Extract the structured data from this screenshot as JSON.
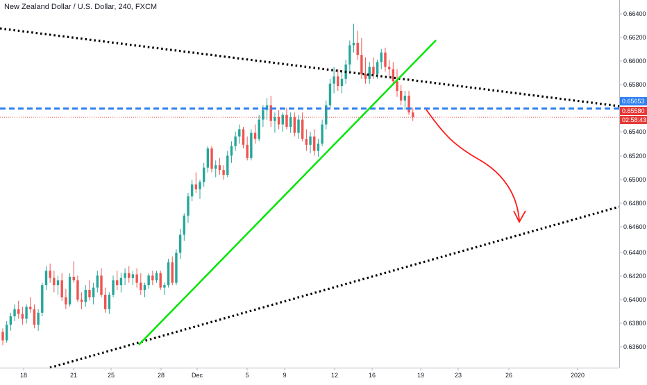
{
  "header": {
    "title": "New Zealand Dollar / U.S. Dollar, 240, FXCM"
  },
  "colors": {
    "up": "#26a69a",
    "down": "#ef5350",
    "trend_green": "#00e600",
    "dotted": "#000000",
    "level_blue": "#2f7ff1",
    "price_red": "#e53935",
    "arrow_red": "#ff1a1a"
  },
  "chart_data": {
    "type": "candlestick",
    "title": "New Zealand Dollar / U.S. Dollar, 240, FXCM",
    "ylim": [
      0.6355,
      0.665
    ],
    "y_ticks": [
      "0.66400",
      "0.66200",
      "0.66000",
      "0.65800",
      "0.65400",
      "0.65200",
      "0.65000",
      "0.64800",
      "0.64600",
      "0.64400",
      "0.64200",
      "0.64000",
      "0.63800",
      "0.63600"
    ],
    "x_ticks": [
      "18",
      "21",
      "25",
      "28",
      "Dec",
      "5",
      "9",
      "12",
      "16",
      "19",
      "23",
      "26",
      "2020"
    ],
    "price_tags": [
      {
        "label": "0.65653",
        "value": 0.65653,
        "color": "blue"
      },
      {
        "label": "0.65580",
        "value": 0.6558,
        "color": "red"
      },
      {
        "label": "02:58:43",
        "value": 0.655,
        "color": "red"
      }
    ],
    "candles": [
      [
        0.6379,
        0.6382,
        0.6368,
        0.6372
      ],
      [
        0.6372,
        0.6388,
        0.637,
        0.6385
      ],
      [
        0.6385,
        0.6395,
        0.638,
        0.6392
      ],
      [
        0.6392,
        0.6402,
        0.6388,
        0.6398
      ],
      [
        0.6398,
        0.6405,
        0.639,
        0.6394
      ],
      [
        0.6394,
        0.64,
        0.6385,
        0.639
      ],
      [
        0.639,
        0.6402,
        0.6386,
        0.64
      ],
      [
        0.64,
        0.6408,
        0.6395,
        0.6398
      ],
      [
        0.6398,
        0.6402,
        0.6382,
        0.6385
      ],
      [
        0.6385,
        0.6398,
        0.638,
        0.6395
      ],
      [
        0.6395,
        0.642,
        0.6392,
        0.6418
      ],
      [
        0.6418,
        0.6434,
        0.6414,
        0.643
      ],
      [
        0.643,
        0.6436,
        0.642,
        0.6424
      ],
      [
        0.6424,
        0.643,
        0.6412,
        0.6418
      ],
      [
        0.6418,
        0.6426,
        0.641,
        0.6422
      ],
      [
        0.6422,
        0.6428,
        0.6405,
        0.6408
      ],
      [
        0.6408,
        0.6415,
        0.6398,
        0.6402
      ],
      [
        0.6402,
        0.6428,
        0.64,
        0.6425
      ],
      [
        0.6425,
        0.6438,
        0.642,
        0.6422
      ],
      [
        0.6422,
        0.6426,
        0.6404,
        0.6406
      ],
      [
        0.6406,
        0.6412,
        0.6398,
        0.6404
      ],
      [
        0.6404,
        0.6418,
        0.64,
        0.6414
      ],
      [
        0.6414,
        0.6422,
        0.6405,
        0.6408
      ],
      [
        0.6408,
        0.642,
        0.6402,
        0.6416
      ],
      [
        0.6416,
        0.643,
        0.6412,
        0.6426
      ],
      [
        0.6426,
        0.6432,
        0.6408,
        0.641
      ],
      [
        0.641,
        0.6416,
        0.6395,
        0.6398
      ],
      [
        0.6398,
        0.6412,
        0.6394,
        0.641
      ],
      [
        0.641,
        0.6426,
        0.6408,
        0.6422
      ],
      [
        0.6422,
        0.643,
        0.6414,
        0.6418
      ],
      [
        0.6418,
        0.6428,
        0.6412,
        0.6424
      ],
      [
        0.6424,
        0.6432,
        0.6418,
        0.6428
      ],
      [
        0.6428,
        0.6434,
        0.642,
        0.6424
      ],
      [
        0.6424,
        0.643,
        0.6418,
        0.6427
      ],
      [
        0.6427,
        0.6432,
        0.6416,
        0.642
      ],
      [
        0.642,
        0.6428,
        0.641,
        0.6414
      ],
      [
        0.6414,
        0.642,
        0.6408,
        0.6418
      ],
      [
        0.6418,
        0.6428,
        0.6415,
        0.6426
      ],
      [
        0.6426,
        0.643,
        0.6418,
        0.6422
      ],
      [
        0.6422,
        0.643,
        0.642,
        0.6428
      ],
      [
        0.6428,
        0.643,
        0.6414,
        0.6416
      ],
      [
        0.6416,
        0.642,
        0.641,
        0.6418
      ],
      [
        0.6418,
        0.644,
        0.6416,
        0.6437
      ],
      [
        0.6437,
        0.6442,
        0.6418,
        0.642
      ],
      [
        0.642,
        0.6448,
        0.6418,
        0.6445
      ],
      [
        0.6445,
        0.6465,
        0.644,
        0.646
      ],
      [
        0.646,
        0.6478,
        0.6455,
        0.6476
      ],
      [
        0.6476,
        0.6495,
        0.647,
        0.6492
      ],
      [
        0.6492,
        0.6506,
        0.6488,
        0.6502
      ],
      [
        0.6502,
        0.6512,
        0.6495,
        0.6498
      ],
      [
        0.6498,
        0.6506,
        0.649,
        0.6504
      ],
      [
        0.6504,
        0.652,
        0.65,
        0.6516
      ],
      [
        0.6516,
        0.6534,
        0.6512,
        0.6532
      ],
      [
        0.6532,
        0.6534,
        0.6512,
        0.6515
      ],
      [
        0.6515,
        0.6522,
        0.6508,
        0.6518
      ],
      [
        0.6518,
        0.6524,
        0.651,
        0.6514
      ],
      [
        0.6514,
        0.6518,
        0.6506,
        0.651
      ],
      [
        0.651,
        0.653,
        0.6508,
        0.6526
      ],
      [
        0.6526,
        0.6538,
        0.652,
        0.6534
      ],
      [
        0.6534,
        0.6546,
        0.653,
        0.6542
      ],
      [
        0.6542,
        0.6552,
        0.6536,
        0.6548
      ],
      [
        0.6548,
        0.655,
        0.6532,
        0.6535
      ],
      [
        0.6535,
        0.6542,
        0.6522,
        0.6524
      ],
      [
        0.6524,
        0.6548,
        0.6522,
        0.6545
      ],
      [
        0.6545,
        0.6552,
        0.6536,
        0.654
      ],
      [
        0.654,
        0.656,
        0.6538,
        0.6556
      ],
      [
        0.6556,
        0.6568,
        0.655,
        0.6564
      ],
      [
        0.6564,
        0.6574,
        0.6556,
        0.6568
      ],
      [
        0.6568,
        0.6576,
        0.655,
        0.6555
      ],
      [
        0.6555,
        0.6562,
        0.6545,
        0.6558
      ],
      [
        0.6558,
        0.6564,
        0.6548,
        0.6552
      ],
      [
        0.6552,
        0.6562,
        0.6546,
        0.656
      ],
      [
        0.656,
        0.6566,
        0.6548,
        0.655
      ],
      [
        0.655,
        0.6562,
        0.6545,
        0.6558
      ],
      [
        0.6558,
        0.6562,
        0.6542,
        0.6545
      ],
      [
        0.6545,
        0.656,
        0.654,
        0.6556
      ],
      [
        0.6556,
        0.6562,
        0.6538,
        0.654
      ],
      [
        0.654,
        0.6548,
        0.653,
        0.6535
      ],
      [
        0.6535,
        0.6546,
        0.6528,
        0.6542
      ],
      [
        0.6542,
        0.6548,
        0.6526,
        0.653
      ],
      [
        0.653,
        0.654,
        0.6525,
        0.6536
      ],
      [
        0.6536,
        0.6556,
        0.6534,
        0.6552
      ],
      [
        0.6552,
        0.6572,
        0.6548,
        0.6568
      ],
      [
        0.6568,
        0.659,
        0.6565,
        0.6586
      ],
      [
        0.6586,
        0.66,
        0.6578,
        0.6592
      ],
      [
        0.6592,
        0.6598,
        0.658,
        0.6584
      ],
      [
        0.6584,
        0.6596,
        0.6578,
        0.659
      ],
      [
        0.659,
        0.6606,
        0.6586,
        0.6602
      ],
      [
        0.6602,
        0.6622,
        0.6596,
        0.6618
      ],
      [
        0.6618,
        0.6636,
        0.6612,
        0.662
      ],
      [
        0.662,
        0.663,
        0.6606,
        0.661
      ],
      [
        0.661,
        0.6624,
        0.659,
        0.6594
      ],
      [
        0.6594,
        0.6608,
        0.6586,
        0.659
      ],
      [
        0.659,
        0.6604,
        0.6586,
        0.66
      ],
      [
        0.66,
        0.6608,
        0.659,
        0.6594
      ],
      [
        0.6594,
        0.6606,
        0.659,
        0.6604
      ],
      [
        0.6604,
        0.6615,
        0.6598,
        0.6612
      ],
      [
        0.6612,
        0.6616,
        0.6596,
        0.66
      ],
      [
        0.66,
        0.6606,
        0.6592,
        0.6598
      ],
      [
        0.6598,
        0.6604,
        0.6585,
        0.6588
      ],
      [
        0.6588,
        0.6598,
        0.6575,
        0.658
      ],
      [
        0.658,
        0.6585,
        0.6568,
        0.6572
      ],
      [
        0.6572,
        0.658,
        0.6564,
        0.6576
      ],
      [
        0.6576,
        0.658,
        0.656,
        0.6562
      ],
      [
        0.6562,
        0.6566,
        0.6555,
        0.6558
      ]
    ],
    "trendlines": [
      {
        "name": "upper-dotted-resistance",
        "style": "dotted"
      },
      {
        "name": "lower-dotted-support",
        "style": "dotted"
      },
      {
        "name": "green-rising-trendline",
        "style": "solid"
      },
      {
        "name": "blue-dashed-level",
        "style": "dashed",
        "value": 0.65653
      },
      {
        "name": "red-price-line",
        "style": "dotted",
        "value": 0.6558
      }
    ]
  }
}
